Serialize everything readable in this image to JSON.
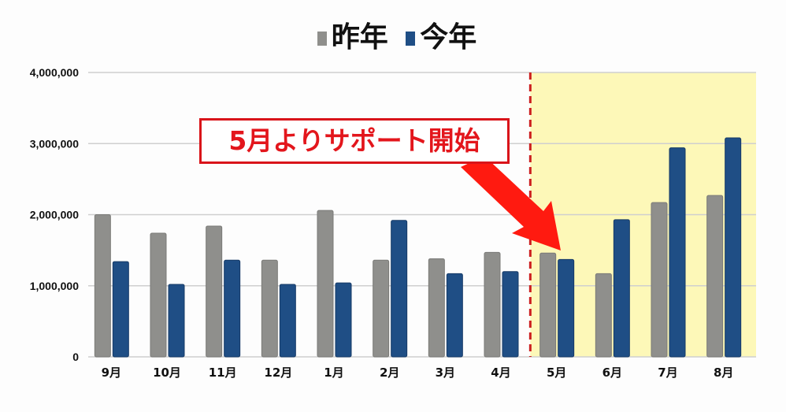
{
  "chart_data": {
    "type": "bar",
    "title": "",
    "xlabel": "",
    "ylabel": "",
    "categories": [
      "9月",
      "10月",
      "11月",
      "12月",
      "1月",
      "2月",
      "3月",
      "4月",
      "5月",
      "6月",
      "7月",
      "8月"
    ],
    "series": [
      {
        "name": "昨年",
        "color": "#8f8f8c",
        "values": [
          2000000,
          1740000,
          1840000,
          1360000,
          2060000,
          1360000,
          1380000,
          1470000,
          1460000,
          1170000,
          2170000,
          2270000
        ]
      },
      {
        "name": "今年",
        "color": "#1f4e85",
        "values": [
          1340000,
          1020000,
          1360000,
          1020000,
          1040000,
          1920000,
          1170000,
          1200000,
          1370000,
          1930000,
          2940000,
          3080000
        ]
      }
    ],
    "ylim": [
      0,
      4000000
    ],
    "yticks": [
      "0",
      "1,000,000",
      "2,000,000",
      "3,000,000",
      "4,000,000"
    ],
    "ytick_values": [
      0,
      1000000,
      2000000,
      3000000,
      4000000
    ],
    "grid": true,
    "legend_position": "top-center",
    "highlight": {
      "from_category": "5月",
      "color": "#fdf8b8",
      "divider_color": "#cc1f1f"
    },
    "annotation": {
      "text": "5月よりサポート開始",
      "color": "#e3161c",
      "points_to": "5月"
    }
  }
}
